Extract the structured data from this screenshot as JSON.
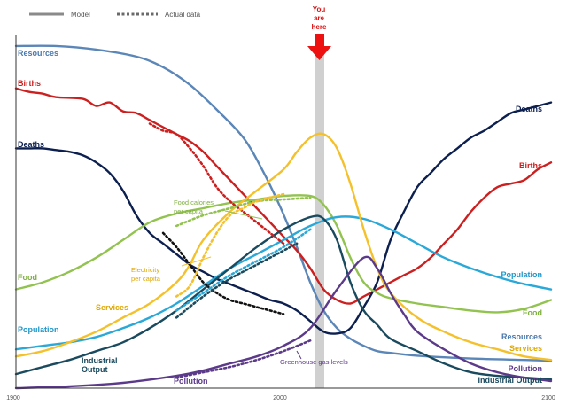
{
  "chart_data": {
    "type": "line",
    "title": "",
    "xlabel": "",
    "ylabel": "",
    "xlim": [
      1900,
      2100
    ],
    "x_ticks": [
      "1900",
      "2000",
      "2100"
    ],
    "grid": false,
    "legend": {
      "position": "top-left",
      "model_label": "Model",
      "actual_label": "Actual data"
    },
    "marker": {
      "year": 2015,
      "label_lines": [
        "You",
        "are",
        "here"
      ],
      "color": "#ee1111"
    },
    "series": [
      {
        "name": "Resources",
        "kind": "model",
        "color": "#5b86b8",
        "points": [
          [
            1900,
            97
          ],
          [
            1915,
            97
          ],
          [
            1930,
            96
          ],
          [
            1945,
            94
          ],
          [
            1955,
            91
          ],
          [
            1965,
            86
          ],
          [
            1975,
            79
          ],
          [
            1985,
            71
          ],
          [
            1992,
            62
          ],
          [
            1999,
            51
          ],
          [
            2005,
            40
          ],
          [
            2010,
            30
          ],
          [
            2015,
            22
          ],
          [
            2020,
            17
          ],
          [
            2025,
            14
          ],
          [
            2030,
            12
          ],
          [
            2035,
            10.5
          ],
          [
            2040,
            10
          ],
          [
            2050,
            9.2
          ],
          [
            2070,
            8.4
          ],
          [
            2090,
            8
          ],
          [
            2100,
            7.8
          ]
        ]
      },
      {
        "name": "Births",
        "kind": "model",
        "color": "#cc2020",
        "points": [
          [
            1900,
            85
          ],
          [
            1905,
            84
          ],
          [
            1910,
            83.5
          ],
          [
            1915,
            82.5
          ],
          [
            1925,
            82
          ],
          [
            1930,
            80
          ],
          [
            1935,
            81
          ],
          [
            1940,
            78.5
          ],
          [
            1945,
            78
          ],
          [
            1950,
            76
          ],
          [
            1955,
            74
          ],
          [
            1960,
            72
          ],
          [
            1965,
            70
          ],
          [
            1970,
            67
          ],
          [
            1975,
            63
          ],
          [
            1980,
            59
          ],
          [
            1985,
            55
          ],
          [
            1990,
            51
          ],
          [
            1995,
            47
          ],
          [
            2000,
            43
          ],
          [
            2005,
            39
          ],
          [
            2010,
            34
          ],
          [
            2015,
            28
          ],
          [
            2020,
            25
          ],
          [
            2025,
            24
          ],
          [
            2030,
            26
          ],
          [
            2035,
            28
          ],
          [
            2040,
            30
          ],
          [
            2045,
            32
          ],
          [
            2050,
            34
          ],
          [
            2055,
            37
          ],
          [
            2060,
            41
          ],
          [
            2065,
            45
          ],
          [
            2070,
            50
          ],
          [
            2075,
            54
          ],
          [
            2080,
            57
          ],
          [
            2085,
            58
          ],
          [
            2090,
            59
          ],
          [
            2095,
            62
          ],
          [
            2100,
            64
          ]
        ]
      },
      {
        "name": "Deaths",
        "kind": "model",
        "color": "#0c1f4f",
        "points": [
          [
            1900,
            68
          ],
          [
            1905,
            68
          ],
          [
            1910,
            68
          ],
          [
            1915,
            67.5
          ],
          [
            1920,
            67
          ],
          [
            1925,
            66
          ],
          [
            1930,
            64
          ],
          [
            1935,
            61
          ],
          [
            1940,
            56
          ],
          [
            1945,
            49
          ],
          [
            1950,
            44
          ],
          [
            1955,
            41
          ],
          [
            1960,
            38
          ],
          [
            1965,
            35
          ],
          [
            1970,
            33
          ],
          [
            1975,
            31
          ],
          [
            1980,
            29.5
          ],
          [
            1985,
            28
          ],
          [
            1990,
            26.5
          ],
          [
            1995,
            25
          ],
          [
            2000,
            24
          ],
          [
            2005,
            22
          ],
          [
            2010,
            19
          ],
          [
            2015,
            16
          ],
          [
            2020,
            15.5
          ],
          [
            2025,
            17
          ],
          [
            2030,
            23
          ],
          [
            2035,
            30
          ],
          [
            2040,
            42
          ],
          [
            2045,
            50
          ],
          [
            2050,
            57
          ],
          [
            2055,
            61
          ],
          [
            2060,
            65
          ],
          [
            2065,
            68
          ],
          [
            2070,
            71
          ],
          [
            2075,
            73
          ],
          [
            2080,
            75.5
          ],
          [
            2085,
            78
          ],
          [
            2090,
            79
          ],
          [
            2095,
            80
          ],
          [
            2100,
            81
          ]
        ]
      },
      {
        "name": "Food",
        "kind": "model",
        "color": "#92c250",
        "points": [
          [
            1900,
            28
          ],
          [
            1910,
            30
          ],
          [
            1920,
            33
          ],
          [
            1930,
            37
          ],
          [
            1940,
            42
          ],
          [
            1950,
            47
          ],
          [
            1960,
            49.5
          ],
          [
            1970,
            51
          ],
          [
            1980,
            52.5
          ],
          [
            1990,
            53.5
          ],
          [
            2000,
            54.5
          ],
          [
            2010,
            54.5
          ],
          [
            2015,
            52
          ],
          [
            2020,
            46
          ],
          [
            2025,
            37
          ],
          [
            2030,
            30
          ],
          [
            2035,
            27
          ],
          [
            2040,
            25.5
          ],
          [
            2050,
            24
          ],
          [
            2060,
            23
          ],
          [
            2070,
            22
          ],
          [
            2080,
            21.5
          ],
          [
            2090,
            22.5
          ],
          [
            2100,
            25
          ]
        ]
      },
      {
        "name": "Population",
        "kind": "model",
        "color": "#2aa8d8",
        "points": [
          [
            1900,
            11
          ],
          [
            1910,
            12
          ],
          [
            1920,
            13
          ],
          [
            1930,
            14.5
          ],
          [
            1940,
            17
          ],
          [
            1950,
            20
          ],
          [
            1960,
            24
          ],
          [
            1970,
            29
          ],
          [
            1980,
            34
          ],
          [
            1990,
            38
          ],
          [
            2000,
            42
          ],
          [
            2010,
            46
          ],
          [
            2020,
            48.5
          ],
          [
            2030,
            48
          ],
          [
            2040,
            45
          ],
          [
            2050,
            41
          ],
          [
            2060,
            37
          ],
          [
            2070,
            34
          ],
          [
            2080,
            31.5
          ],
          [
            2090,
            29.5
          ],
          [
            2100,
            28
          ]
        ]
      },
      {
        "name": "Services",
        "kind": "model",
        "color": "#f4c12c",
        "points": [
          [
            1900,
            9
          ],
          [
            1910,
            10.5
          ],
          [
            1920,
            13
          ],
          [
            1930,
            16
          ],
          [
            1940,
            20
          ],
          [
            1950,
            24
          ],
          [
            1960,
            30
          ],
          [
            1965,
            35
          ],
          [
            1970,
            42
          ],
          [
            1980,
            50
          ],
          [
            1990,
            56
          ],
          [
            2000,
            62
          ],
          [
            2005,
            67
          ],
          [
            2010,
            71
          ],
          [
            2015,
            72
          ],
          [
            2020,
            68
          ],
          [
            2025,
            58
          ],
          [
            2030,
            45
          ],
          [
            2035,
            34
          ],
          [
            2040,
            27
          ],
          [
            2050,
            20
          ],
          [
            2060,
            16
          ],
          [
            2070,
            13
          ],
          [
            2080,
            11
          ],
          [
            2090,
            9
          ],
          [
            2100,
            8
          ]
        ]
      },
      {
        "name": "Industrial Output",
        "kind": "model",
        "color": "#1a4a5e",
        "points": [
          [
            1900,
            4
          ],
          [
            1910,
            6
          ],
          [
            1920,
            8
          ],
          [
            1930,
            10.5
          ],
          [
            1940,
            13
          ],
          [
            1950,
            17
          ],
          [
            1960,
            22
          ],
          [
            1970,
            28
          ],
          [
            1980,
            34
          ],
          [
            1990,
            40
          ],
          [
            2000,
            45
          ],
          [
            2010,
            48.5
          ],
          [
            2015,
            48
          ],
          [
            2020,
            42
          ],
          [
            2025,
            30
          ],
          [
            2030,
            22
          ],
          [
            2035,
            18
          ],
          [
            2040,
            14
          ],
          [
            2050,
            10.5
          ],
          [
            2060,
            7
          ],
          [
            2070,
            4.5
          ],
          [
            2080,
            3.5
          ],
          [
            2090,
            3
          ],
          [
            2100,
            2.5
          ]
        ]
      },
      {
        "name": "Pollution",
        "kind": "model",
        "color": "#5c3a8a",
        "points": [
          [
            1900,
            0
          ],
          [
            1920,
            0.5
          ],
          [
            1940,
            1.5
          ],
          [
            1960,
            3.5
          ],
          [
            1970,
            5
          ],
          [
            1980,
            7
          ],
          [
            1990,
            9
          ],
          [
            2000,
            12
          ],
          [
            2010,
            17
          ],
          [
            2020,
            28
          ],
          [
            2030,
            37
          ],
          [
            2035,
            34
          ],
          [
            2040,
            27
          ],
          [
            2045,
            21
          ],
          [
            2050,
            16
          ],
          [
            2060,
            11
          ],
          [
            2070,
            7
          ],
          [
            2080,
            4.5
          ],
          [
            2090,
            3
          ],
          [
            2100,
            2
          ]
        ]
      },
      {
        "name": "Births",
        "kind": "actual",
        "color": "#cc2020",
        "points": [
          [
            1950,
            75
          ],
          [
            1955,
            73
          ],
          [
            1960,
            72
          ],
          [
            1965,
            68
          ],
          [
            1970,
            63
          ],
          [
            1975,
            57
          ],
          [
            1980,
            53
          ],
          [
            1985,
            50
          ],
          [
            1990,
            47
          ],
          [
            1995,
            44
          ],
          [
            2000,
            41
          ]
        ]
      },
      {
        "name": "Deaths",
        "kind": "actual",
        "color": "#111111",
        "points": [
          [
            1955,
            44
          ],
          [
            1960,
            40
          ],
          [
            1965,
            35
          ],
          [
            1970,
            30
          ],
          [
            1975,
            27
          ],
          [
            1980,
            25
          ],
          [
            1985,
            24
          ],
          [
            1990,
            23
          ],
          [
            1995,
            22
          ],
          [
            2000,
            21
          ]
        ]
      },
      {
        "name": "Food calories per capita",
        "kind": "actual",
        "color": "#92c250",
        "points": [
          [
            1960,
            46
          ],
          [
            1970,
            49
          ],
          [
            1980,
            51
          ],
          [
            1990,
            53
          ],
          [
            2000,
            53.5
          ],
          [
            2010,
            54
          ]
        ]
      },
      {
        "name": "Electricity per capita",
        "kind": "actual",
        "color": "#f4c12c",
        "points": [
          [
            1960,
            26
          ],
          [
            1965,
            29
          ],
          [
            1970,
            37
          ],
          [
            1975,
            44
          ],
          [
            1980,
            49
          ],
          [
            1985,
            51
          ],
          [
            1990,
            53
          ],
          [
            2000,
            55
          ]
        ]
      },
      {
        "name": "Population",
        "kind": "actual",
        "color": "#2aa8d8",
        "points": [
          [
            1960,
            22
          ],
          [
            1970,
            27
          ],
          [
            1980,
            32
          ],
          [
            1990,
            36
          ],
          [
            2000,
            40
          ],
          [
            2010,
            45
          ]
        ]
      },
      {
        "name": "Industrial Output",
        "kind": "actual",
        "color": "#1a4a5e",
        "points": [
          [
            1960,
            20
          ],
          [
            1970,
            26
          ],
          [
            1980,
            31
          ],
          [
            1990,
            35
          ],
          [
            2000,
            39
          ],
          [
            2005,
            41
          ]
        ]
      },
      {
        "name": "Greenhouse gas levels",
        "kind": "actual",
        "color": "#5c3a8a",
        "points": [
          [
            1960,
            3
          ],
          [
            1970,
            4.5
          ],
          [
            1980,
            6
          ],
          [
            1990,
            8
          ],
          [
            2000,
            10.5
          ],
          [
            2010,
            13.5
          ]
        ]
      }
    ],
    "annotations": {
      "food_calories": [
        "Food calories",
        "per capita"
      ],
      "electricity": [
        "Electricity",
        "per capita"
      ],
      "greenhouse": "Greenhouse gas levels"
    }
  },
  "labels": {
    "left": {
      "resources": "Resources",
      "births": "Births",
      "deaths": "Deaths",
      "food": "Food",
      "services": "Services",
      "population": "Population",
      "industrial_output": [
        "Industrial",
        "Output"
      ],
      "pollution": "Pollution"
    },
    "right": {
      "deaths": "Deaths",
      "births": "Births",
      "population": "Population",
      "food": "Food",
      "resources": "Resources",
      "services": "Services",
      "pollution": "Pollution",
      "industrial_output": "Industrial Output"
    }
  },
  "colors": {
    "resources": "#5b86b8",
    "births": "#cc2020",
    "deaths": "#0c1f4f",
    "food": "#92c250",
    "population": "#2aa8d8",
    "services": "#f4c12c",
    "industrial": "#1a4a5e",
    "pollution": "#5c3a8a"
  }
}
